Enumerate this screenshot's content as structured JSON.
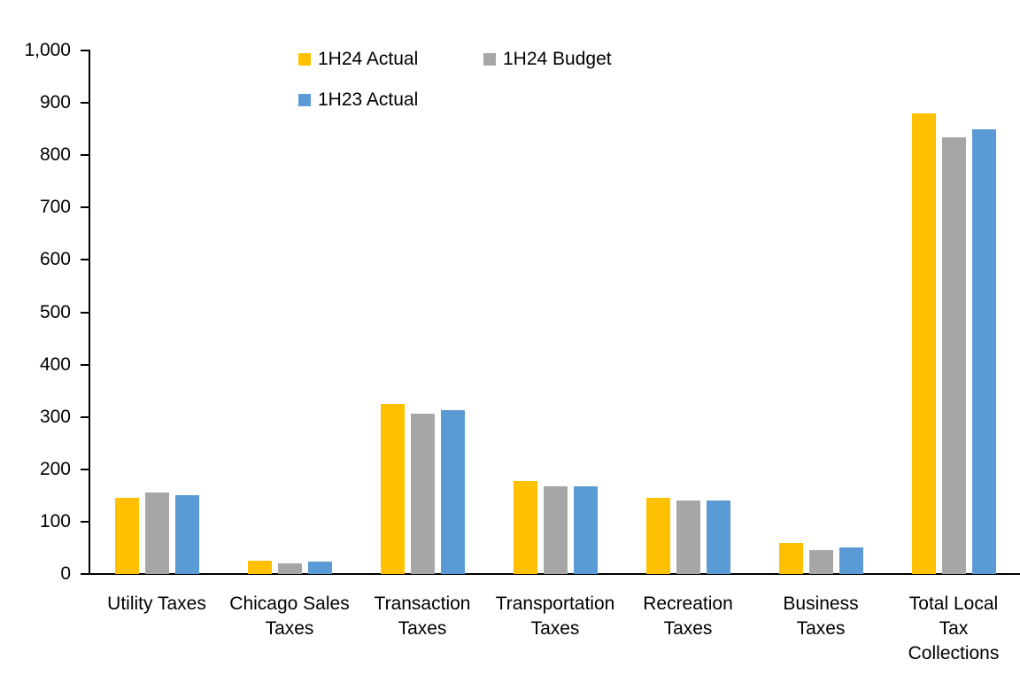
{
  "chart_data": {
    "type": "bar",
    "title": "",
    "xlabel": "",
    "ylabel": "",
    "categories": [
      "Utility Taxes",
      "Chicago Sales Taxes",
      "Transaction Taxes",
      "Transportation Taxes",
      "Recreation Taxes",
      "Business Taxes",
      "Total Local Tax Collections"
    ],
    "category_lines": [
      [
        "Utility Taxes"
      ],
      [
        "Chicago Sales",
        "Taxes"
      ],
      [
        "Transaction",
        "Taxes"
      ],
      [
        "Transportation",
        "Taxes"
      ],
      [
        "Recreation",
        "Taxes"
      ],
      [
        "Business",
        "Taxes"
      ],
      [
        "Total Local",
        "Tax",
        "Collections"
      ]
    ],
    "series": [
      {
        "name": "1H24 Actual",
        "color": "#FFC000",
        "values": [
          145,
          25,
          325,
          178,
          146,
          60,
          880
        ]
      },
      {
        "name": "1H24 Budget",
        "color": "#A6A6A6",
        "values": [
          155,
          21,
          306,
          167,
          140,
          46,
          835
        ]
      },
      {
        "name": "1H23 Actual",
        "color": "#5B9BD5",
        "values": [
          151,
          23,
          313,
          168,
          141,
          50,
          850
        ]
      }
    ],
    "ylim": [
      0,
      1000
    ],
    "ytick_step": 100,
    "ytick_labels": [
      "0",
      "100",
      "200",
      "300",
      "400",
      "500",
      "600",
      "700",
      "800",
      "900",
      "1,000"
    ],
    "grid": false,
    "legend_position": "top-center",
    "axis_color": "#000000",
    "text_color": "#000000",
    "background": "#ffffff"
  }
}
